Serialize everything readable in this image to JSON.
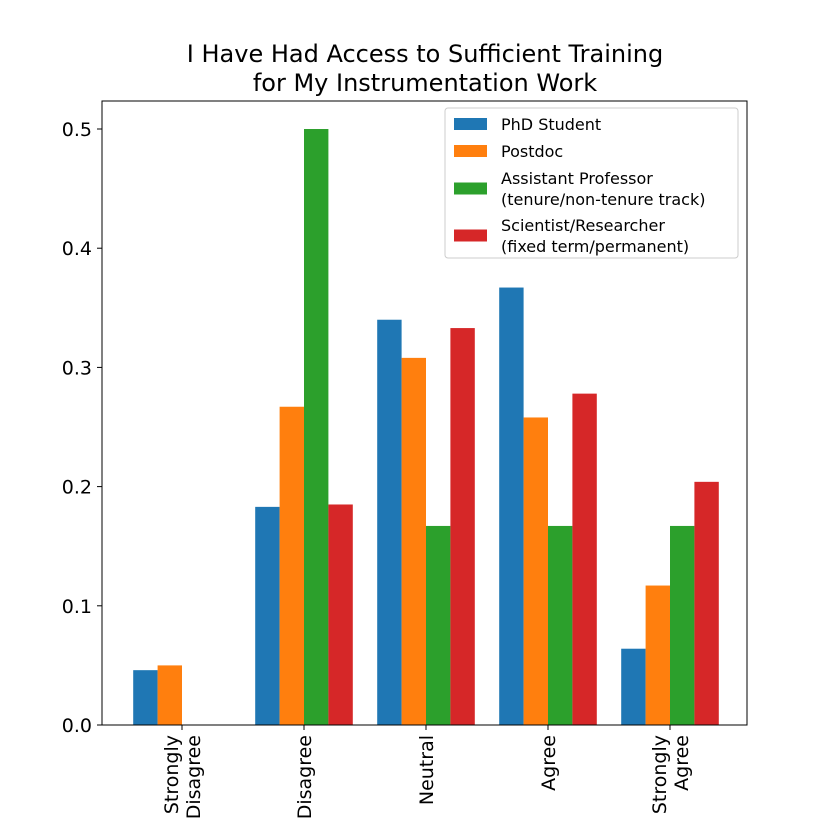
{
  "chart_data": {
    "type": "bar",
    "title": "I Have Had Access to Sufficient Training\nfor My Instrumentation Work",
    "categories": [
      "Strongly\nDisagree",
      "Disagree",
      "Neutral",
      "Agree",
      "Strongly\nAgree"
    ],
    "series": [
      {
        "name": "PhD Student",
        "color": "#1f77b4",
        "values": [
          0.046,
          0.183,
          0.34,
          0.367,
          0.064
        ]
      },
      {
        "name": "Postdoc",
        "color": "#ff7f0e",
        "values": [
          0.05,
          0.267,
          0.308,
          0.258,
          0.117
        ]
      },
      {
        "name": "Assistant Professor\n(tenure/non-tenure track)",
        "color": "#2ca02c",
        "values": [
          0,
          0.5,
          0.167,
          0.167,
          0.167
        ]
      },
      {
        "name": "Scientist/Researcher\n(fixed term/permanent)",
        "color": "#d62728",
        "values": [
          0,
          0.185,
          0.333,
          0.278,
          0.204
        ]
      }
    ],
    "ylim": [
      0,
      0.5235
    ],
    "yticks": [
      {
        "value": 0,
        "label": "0.0"
      },
      0.1,
      0.2,
      0.3,
      0.4,
      0.5
    ],
    "legend": "upper right"
  }
}
